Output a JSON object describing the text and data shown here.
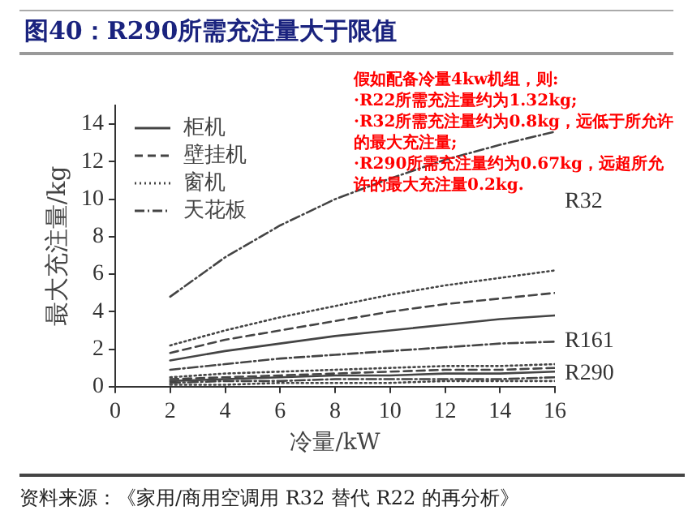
{
  "chart_data": {
    "type": "line",
    "title": "图40：R290所需充注量大于限值",
    "xlabel": "冷量/kW",
    "ylabel": "最大充注量/kg",
    "x": [
      2,
      4,
      6,
      8,
      10,
      12,
      14,
      16
    ],
    "xlim": [
      0,
      16
    ],
    "xticks": [
      0,
      2,
      4,
      6,
      8,
      10,
      12,
      14,
      16
    ],
    "ylim": [
      0,
      15
    ],
    "yticks": [
      0,
      2,
      4,
      6,
      8,
      10,
      12,
      14
    ],
    "grid": false,
    "legend": "top left",
    "marker": "none",
    "series": [
      {
        "name": "柜机",
        "color": "#444444",
        "line_style": "solid",
        "values": [
          1.4,
          1.9,
          2.3,
          2.7,
          3.0,
          3.3,
          3.6,
          3.8
        ]
      },
      {
        "name": "壁挂机",
        "color": "#444444",
        "line_style": "dashed",
        "values": [
          1.8,
          2.5,
          3.0,
          3.5,
          4.0,
          4.4,
          4.7,
          5.0
        ]
      },
      {
        "name": "窗机",
        "color": "#444444",
        "line_style": "dotted",
        "values": [
          2.2,
          3.0,
          3.7,
          4.3,
          4.9,
          5.4,
          5.8,
          6.2
        ]
      },
      {
        "name": "天花板",
        "color": "#444444",
        "line_style": "dashdot",
        "values": [
          4.8,
          6.9,
          8.6,
          10.0,
          11.1,
          12.1,
          12.9,
          13.6
        ]
      },
      {
        "color": "#444444",
        "line_style": "dashdot",
        "values": [
          0.9,
          1.2,
          1.5,
          1.7,
          1.9,
          2.1,
          2.3,
          2.4
        ]
      },
      {
        "color": "#444444",
        "line_style": "dotted",
        "values": [
          0.5,
          0.7,
          0.8,
          0.9,
          1.0,
          1.1,
          1.1,
          1.2
        ]
      },
      {
        "color": "#444444",
        "line_style": "dashed",
        "values": [
          0.4,
          0.5,
          0.6,
          0.7,
          0.8,
          0.9,
          0.9,
          1.0
        ]
      },
      {
        "color": "#444444",
        "line_style": "solid",
        "values": [
          0.3,
          0.4,
          0.5,
          0.6,
          0.6,
          0.7,
          0.7,
          0.8
        ]
      },
      {
        "color": "#444444",
        "line_style": "dashdot",
        "values": [
          0.2,
          0.3,
          0.3,
          0.4,
          0.4,
          0.4,
          0.4,
          0.5
        ]
      },
      {
        "color": "#444444",
        "line_style": "dotted",
        "values": [
          0.1,
          0.1,
          0.2,
          0.2,
          0.2,
          0.3,
          0.3,
          0.3
        ]
      }
    ],
    "annotations": [
      "R32",
      "R161",
      "R290",
      "假如配备冷量4kw机组，则:\n·R22所需充注量约为1.32kg;\n·R32所需充注量约为0.8kg，远低于所允许的最大充注量;\n·R290所需充注量约为0.67kg，远超所允许的最大充注量0.2kg.",
      "资料来源：《家用/商用空调用 R32 替代 R22 的再分析》"
    ]
  }
}
